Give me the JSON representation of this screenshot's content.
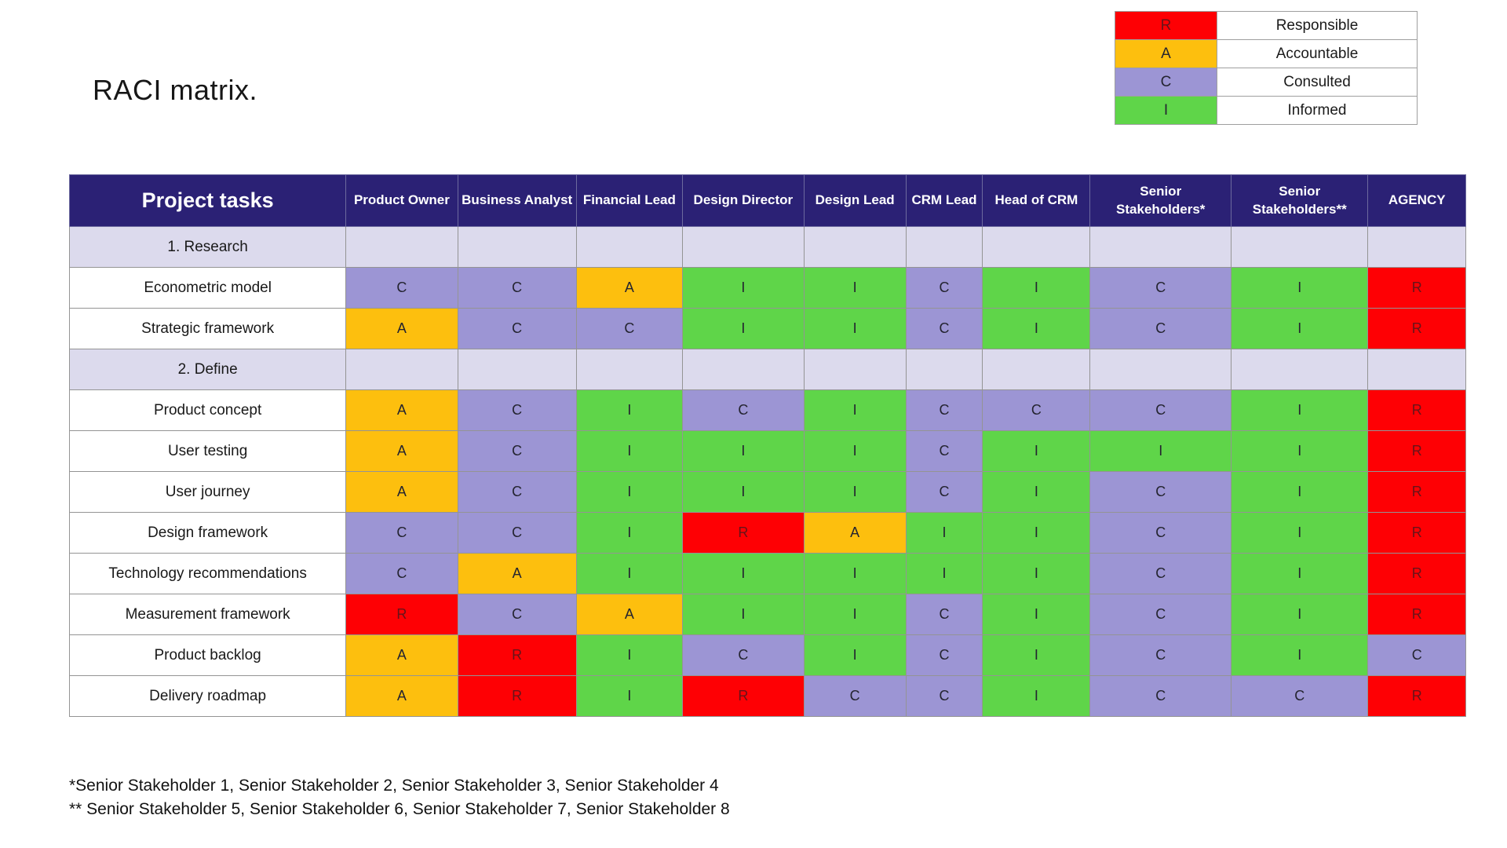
{
  "title": "RACI matrix.",
  "legend": {
    "items": [
      {
        "code": "R",
        "label": "Responsible"
      },
      {
        "code": "A",
        "label": "Accountable"
      },
      {
        "code": "C",
        "label": "Consulted"
      },
      {
        "code": "I",
        "label": "Informed"
      }
    ]
  },
  "table": {
    "header": [
      "Project tasks",
      "Product Owner",
      "Business Analyst",
      "Financial Lead",
      "Design Director",
      "Design Lead",
      "CRM Lead",
      "Head of CRM",
      "Senior Stakeholders*",
      "Senior Stakeholders**",
      "AGENCY"
    ],
    "rows": [
      {
        "task": "1. Research",
        "type": "section",
        "values": [
          "",
          "",
          "",
          "",
          "",
          "",
          "",
          "",
          "",
          ""
        ]
      },
      {
        "task": "Econometric model",
        "type": "task",
        "values": [
          "C",
          "C",
          "A",
          "I",
          "I",
          "C",
          "I",
          "C",
          "I",
          "R"
        ]
      },
      {
        "task": "Strategic framework",
        "type": "task",
        "values": [
          "A",
          "C",
          "C",
          "I",
          "I",
          "C",
          "I",
          "C",
          "I",
          "R"
        ]
      },
      {
        "task": "2. Define",
        "type": "section",
        "values": [
          "",
          "",
          "",
          "",
          "",
          "",
          "",
          "",
          "",
          ""
        ]
      },
      {
        "task": "Product concept",
        "type": "task",
        "values": [
          "A",
          "C",
          "I",
          "C",
          "I",
          "C",
          "C",
          "C",
          "I",
          "R"
        ]
      },
      {
        "task": "User testing",
        "type": "task",
        "values": [
          "A",
          "C",
          "I",
          "I",
          "I",
          "C",
          "I",
          "I",
          "I",
          "R"
        ]
      },
      {
        "task": "User journey",
        "type": "task",
        "values": [
          "A",
          "C",
          "I",
          "I",
          "I",
          "C",
          "I",
          "C",
          "I",
          "R"
        ]
      },
      {
        "task": "Design framework",
        "type": "task",
        "values": [
          "C",
          "C",
          "I",
          "R",
          "A",
          "I",
          "I",
          "C",
          "I",
          "R"
        ]
      },
      {
        "task": "Technology recommendations",
        "type": "task",
        "values": [
          "C",
          "A",
          "I",
          "I",
          "I",
          "I",
          "I",
          "C",
          "I",
          "R"
        ]
      },
      {
        "task": "Measurement framework",
        "type": "task",
        "values": [
          "R",
          "C",
          "A",
          "I",
          "I",
          "C",
          "I",
          "C",
          "I",
          "R"
        ]
      },
      {
        "task": "Product backlog",
        "type": "task",
        "values": [
          "A",
          "R",
          "I",
          "C",
          "I",
          "C",
          "I",
          "C",
          "I",
          "C"
        ]
      },
      {
        "task": "Delivery roadmap",
        "type": "task",
        "values": [
          "A",
          "R",
          "I",
          "R",
          "C",
          "C",
          "I",
          "C",
          "C",
          "R"
        ]
      }
    ]
  },
  "colors": {
    "R": "#fe0004",
    "A": "#fdbf0e",
    "C": "#9c95d4",
    "I": "#5fd549",
    "section_row": "#dcdaed",
    "header_bg": "#2b2175",
    "letter_default": "#242430",
    "letter_on_red": "#66141a"
  },
  "footnotes": [
    "*Senior Stakeholder 1, Senior Stakeholder 2, Senior Stakeholder 3, Senior Stakeholder 4",
    "** Senior Stakeholder 5, Senior Stakeholder 6, Senior Stakeholder 7, Senior Stakeholder 8"
  ]
}
